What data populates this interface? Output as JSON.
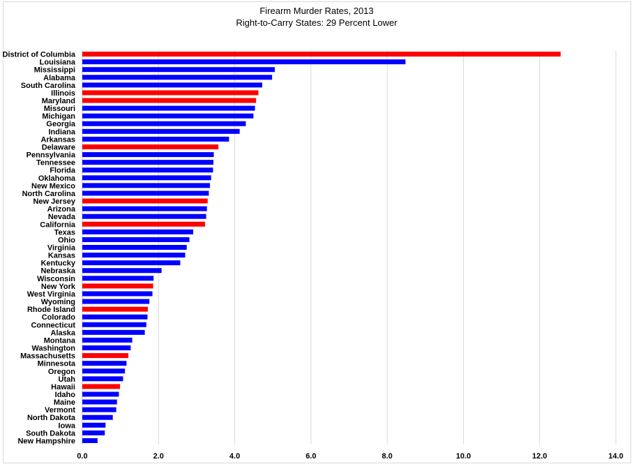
{
  "chart_data": {
    "type": "bar",
    "orientation": "horizontal",
    "title": "Firearm Murder Rates, 2013",
    "subtitle": "Right-to-Carry States: 29 Percent Lower",
    "xlabel": "",
    "ylabel": "",
    "xlim": [
      0,
      14
    ],
    "x_ticks": [
      0,
      2,
      4,
      6,
      8,
      10,
      12,
      14
    ],
    "x_tick_labels": [
      "0.0",
      "2.0",
      "4.0",
      "6.0",
      "8.0",
      "10.0",
      "12.0",
      "14.0"
    ],
    "grid": "vertical",
    "colors": {
      "right_to_carry": "#0000ff",
      "non_right_to_carry": "#ff0000",
      "grid": "#d9d9d9"
    },
    "categories": [
      "District of Columbia",
      "Louisiana",
      "Mississippi",
      "Alabama",
      "South Carolina",
      "Illinois",
      "Maryland",
      "Missouri",
      "Michigan",
      "Georgia",
      "Indiana",
      "Arkansas",
      "Delaware",
      "Pennsylvania",
      "Tennessee",
      "Florida",
      "Oklahoma",
      "New Mexico",
      "North Carolina",
      "New Jersey",
      "Arizona",
      "Nevada",
      "California",
      "Texas",
      "Ohio",
      "Virginia",
      "Kansas",
      "Kentucky",
      "Nebraska",
      "Wisconsin",
      "New York",
      "West Virginia",
      "Wyoming",
      "Rhode Island",
      "Colorado",
      "Connecticut",
      "Alaska",
      "Montana",
      "Washington",
      "Massachusetts",
      "Minnesota",
      "Oregon",
      "Utah",
      "Hawaii",
      "Idaho",
      "Maine",
      "Vermont",
      "North Dakota",
      "Iowa",
      "South Dakota",
      "New Hampshire"
    ],
    "values": [
      12.55,
      8.48,
      5.05,
      4.98,
      4.72,
      4.62,
      4.56,
      4.53,
      4.49,
      4.29,
      4.13,
      3.85,
      3.57,
      3.45,
      3.44,
      3.43,
      3.38,
      3.35,
      3.32,
      3.29,
      3.27,
      3.25,
      3.22,
      2.91,
      2.81,
      2.74,
      2.7,
      2.57,
      2.08,
      1.87,
      1.86,
      1.84,
      1.76,
      1.72,
      1.71,
      1.68,
      1.64,
      1.31,
      1.27,
      1.21,
      1.16,
      1.12,
      1.07,
      0.99,
      0.96,
      0.91,
      0.89,
      0.8,
      0.61,
      0.59,
      0.4
    ],
    "rtc": [
      false,
      true,
      true,
      true,
      true,
      false,
      false,
      true,
      true,
      true,
      true,
      true,
      false,
      true,
      true,
      true,
      true,
      true,
      true,
      false,
      true,
      true,
      false,
      true,
      true,
      true,
      true,
      true,
      true,
      true,
      false,
      true,
      true,
      false,
      true,
      true,
      true,
      true,
      true,
      false,
      true,
      true,
      true,
      false,
      true,
      true,
      true,
      true,
      true,
      true,
      true
    ]
  }
}
